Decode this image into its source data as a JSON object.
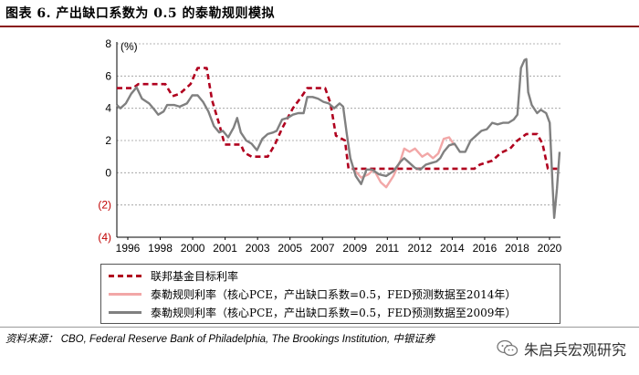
{
  "figure": {
    "title": "图表 6. 产出缺口系数为 0.5 的泰勒规则模拟",
    "source": "资料来源： CBO, Federal Reserve Bank of Philadelphia, The Brookings Institution, 中银证券",
    "watermark": "朱启兵宏观研究",
    "watermark_icon": "wechat-icon"
  },
  "chart_data": {
    "type": "line",
    "ylabel": "(%)",
    "ylim": [
      -4,
      8
    ],
    "xlim": [
      1996,
      2020.7
    ],
    "y_ticks": [
      {
        "value": 8,
        "label": "8"
      },
      {
        "value": 6,
        "label": "6"
      },
      {
        "value": 4,
        "label": "4"
      },
      {
        "value": 2,
        "label": "2"
      },
      {
        "value": 0,
        "label": "0"
      },
      {
        "value": -2,
        "label": "(2)"
      },
      {
        "value": -4,
        "label": "(4)"
      }
    ],
    "x_ticks": [
      "1996",
      "1998",
      "2000",
      "2001",
      "2003",
      "2005",
      "2007",
      "2009",
      "2011",
      "2012",
      "2014",
      "2016",
      "2018",
      "2020"
    ],
    "grid": "horizontal dashed",
    "colors": {
      "fed": "#b0001e",
      "taylor2014": "#f2a7a7",
      "taylor2009": "#808080",
      "negative_label": "#c00000"
    },
    "series": [
      {
        "key": "fed",
        "name": "联邦基金目标利率",
        "style": "dashed",
        "points": [
          [
            1996,
            5.25
          ],
          [
            1996.9,
            5.25
          ],
          [
            1997.2,
            5.5
          ],
          [
            1998.7,
            5.5
          ],
          [
            1999.1,
            4.75
          ],
          [
            1999.5,
            4.9
          ],
          [
            2000.1,
            5.5
          ],
          [
            2000.5,
            6.5
          ],
          [
            2001.0,
            6.5
          ],
          [
            2001.3,
            4.5
          ],
          [
            2001.7,
            3.0
          ],
          [
            2002.0,
            1.75
          ],
          [
            2002.9,
            1.75
          ],
          [
            2003.1,
            1.25
          ],
          [
            2003.5,
            1.0
          ],
          [
            2004.4,
            1.0
          ],
          [
            2004.8,
            1.75
          ],
          [
            2005.2,
            2.75
          ],
          [
            2005.8,
            4.0
          ],
          [
            2006.3,
            4.75
          ],
          [
            2006.6,
            5.25
          ],
          [
            2007.6,
            5.25
          ],
          [
            2007.9,
            4.3
          ],
          [
            2008.2,
            2.3
          ],
          [
            2008.7,
            2.0
          ],
          [
            2008.9,
            0.25
          ],
          [
            2015.9,
            0.25
          ],
          [
            2016.2,
            0.5
          ],
          [
            2016.9,
            0.75
          ],
          [
            2017.4,
            1.25
          ],
          [
            2017.9,
            1.5
          ],
          [
            2018.3,
            2.0
          ],
          [
            2018.8,
            2.4
          ],
          [
            2019.4,
            2.4
          ],
          [
            2019.7,
            1.8
          ],
          [
            2020.0,
            0.25
          ],
          [
            2020.6,
            0.25
          ]
        ]
      },
      {
        "key": "taylor2014",
        "name": "泰勒规则利率（核心PCE，产出缺口系数=0.5，FED预测数据至2014年）",
        "style": "solid",
        "points": [
          [
            2009.2,
            0.2
          ],
          [
            2009.6,
            -0.3
          ],
          [
            2010.0,
            -0.1
          ],
          [
            2010.3,
            0.2
          ],
          [
            2010.7,
            -0.6
          ],
          [
            2011.0,
            -0.9
          ],
          [
            2011.4,
            -0.2
          ],
          [
            2011.8,
            0.8
          ],
          [
            2012.0,
            1.5
          ],
          [
            2012.3,
            1.3
          ],
          [
            2012.6,
            1.5
          ],
          [
            2013.0,
            1.0
          ],
          [
            2013.3,
            1.2
          ],
          [
            2013.6,
            0.9
          ],
          [
            2013.9,
            1.2
          ],
          [
            2014.2,
            2.1
          ],
          [
            2014.5,
            2.2
          ],
          [
            2014.8,
            1.7
          ]
        ]
      },
      {
        "key": "taylor2009",
        "name": "泰勒规则利率（核心PCE，产出缺口系数=0.5，FED预测数据至2009年）",
        "style": "solid",
        "points": [
          [
            1996,
            4.2
          ],
          [
            1996.2,
            4.0
          ],
          [
            1996.5,
            4.3
          ],
          [
            1996.8,
            4.9
          ],
          [
            1997.1,
            5.3
          ],
          [
            1997.4,
            4.6
          ],
          [
            1997.8,
            4.3
          ],
          [
            1998.1,
            3.9
          ],
          [
            1998.3,
            3.6
          ],
          [
            1998.6,
            3.8
          ],
          [
            1998.8,
            4.2
          ],
          [
            1999.2,
            4.2
          ],
          [
            1999.5,
            4.1
          ],
          [
            1999.9,
            4.3
          ],
          [
            2000.2,
            4.8
          ],
          [
            2000.5,
            4.8
          ],
          [
            2000.8,
            4.4
          ],
          [
            2001.1,
            3.8
          ],
          [
            2001.4,
            2.9
          ],
          [
            2001.7,
            2.5
          ],
          [
            2001.9,
            2.6
          ],
          [
            2002.2,
            2.2
          ],
          [
            2002.5,
            2.8
          ],
          [
            2002.7,
            3.4
          ],
          [
            2002.9,
            2.5
          ],
          [
            2003.2,
            2.0
          ],
          [
            2003.5,
            1.8
          ],
          [
            2003.8,
            1.4
          ],
          [
            2004.1,
            2.1
          ],
          [
            2004.4,
            2.4
          ],
          [
            2004.7,
            2.5
          ],
          [
            2004.9,
            2.6
          ],
          [
            2005.2,
            3.3
          ],
          [
            2005.5,
            3.4
          ],
          [
            2005.8,
            3.6
          ],
          [
            2006.1,
            3.7
          ],
          [
            2006.4,
            3.7
          ],
          [
            2006.6,
            4.7
          ],
          [
            2006.9,
            4.7
          ],
          [
            2007.2,
            4.6
          ],
          [
            2007.5,
            4.4
          ],
          [
            2007.8,
            4.3
          ],
          [
            2008.1,
            4.0
          ],
          [
            2008.4,
            4.3
          ],
          [
            2008.6,
            4.1
          ],
          [
            2008.8,
            2.4
          ],
          [
            2009.0,
            0.9
          ],
          [
            2009.3,
            -0.2
          ],
          [
            2009.6,
            -0.7
          ],
          [
            2009.9,
            0.2
          ],
          [
            2010.2,
            0.2
          ],
          [
            2010.6,
            -0.1
          ],
          [
            2011.0,
            -0.2
          ],
          [
            2011.4,
            0.1
          ],
          [
            2011.8,
            0.7
          ],
          [
            2012.0,
            0.9
          ],
          [
            2012.3,
            0.6
          ],
          [
            2012.6,
            0.3
          ],
          [
            2012.9,
            0.2
          ],
          [
            2013.2,
            0.5
          ],
          [
            2013.5,
            0.6
          ],
          [
            2013.8,
            0.7
          ],
          [
            2014.0,
            0.9
          ],
          [
            2014.2,
            1.3
          ],
          [
            2014.5,
            1.7
          ],
          [
            2014.8,
            1.8
          ],
          [
            2015.1,
            1.3
          ],
          [
            2015.4,
            1.3
          ],
          [
            2015.7,
            2.0
          ],
          [
            2016.0,
            2.3
          ],
          [
            2016.3,
            2.6
          ],
          [
            2016.6,
            2.7
          ],
          [
            2016.9,
            3.1
          ],
          [
            2017.2,
            3.0
          ],
          [
            2017.5,
            3.1
          ],
          [
            2017.8,
            3.1
          ],
          [
            2018.1,
            3.3
          ],
          [
            2018.3,
            3.6
          ],
          [
            2018.5,
            6.5
          ],
          [
            2018.7,
            7.0
          ],
          [
            2018.8,
            7.05
          ],
          [
            2018.9,
            5.0
          ],
          [
            2019.1,
            4.2
          ],
          [
            2019.4,
            3.7
          ],
          [
            2019.6,
            3.9
          ],
          [
            2019.9,
            3.7
          ],
          [
            2020.1,
            3.1
          ],
          [
            2020.25,
            -0.5
          ],
          [
            2020.35,
            -2.8
          ],
          [
            2020.5,
            -1.0
          ],
          [
            2020.65,
            1.3
          ]
        ]
      }
    ]
  }
}
